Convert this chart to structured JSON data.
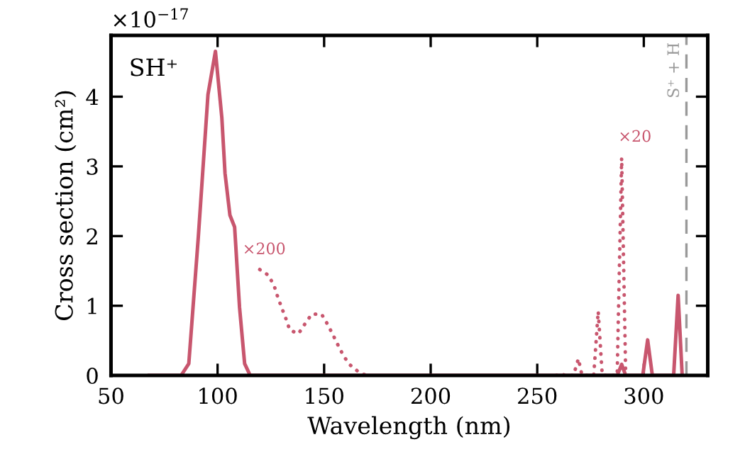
{
  "chart_data": {
    "type": "line",
    "xlabel": "Wavelength (nm)",
    "ylabel": "Cross section (cm²)",
    "xlim": [
      50,
      330
    ],
    "xticks": [
      50,
      100,
      150,
      200,
      250,
      300
    ],
    "ylim": [
      0,
      4.88
    ],
    "yticks": [
      0,
      1,
      2,
      3,
      4
    ],
    "grid": false,
    "legend": false,
    "marker": "none",
    "series": [
      {
        "color": "#c8566e",
        "line_style": "solid",
        "x": [
          68,
          82.9,
          86.5,
          91,
          95.5,
          99,
          102,
          103.5,
          105.8,
          108,
          110.3,
          112.7,
          115.3,
          287.5,
          289.6,
          291.5,
          299.5,
          301.8,
          304,
          314,
          316.1,
          318
        ],
        "values": [
          0,
          0,
          0.17,
          2.0,
          4.03,
          4.65,
          3.7,
          2.9,
          2.3,
          2.13,
          0.98,
          0.17,
          0,
          0,
          0.16,
          0,
          0,
          0.51,
          0,
          0,
          1.15,
          0
        ]
      },
      {
        "color": "#c8566e",
        "line_style": "dotted",
        "x": [
          119.8,
          123.8,
          126.5,
          128.2,
          130.1,
          131.9,
          133.9,
          138,
          141,
          144.2,
          148.8,
          151.5,
          154.2,
          156.6,
          159.3,
          162.2,
          166.6,
          170
        ],
        "values": [
          1.52,
          1.44,
          1.29,
          1.13,
          0.97,
          0.83,
          0.65,
          0.6,
          0.74,
          0.88,
          0.88,
          0.74,
          0.58,
          0.43,
          0.27,
          0.15,
          0.04,
          0
        ]
      },
      {
        "color": "#c8566e",
        "line_style": "dotted",
        "x": [
          259,
          261,
          263,
          267,
          269.3,
          271,
          276.5,
          278.6,
          280.5,
          287.5,
          289.6,
          291.5
        ],
        "values": [
          0,
          0.03,
          0,
          0,
          0.24,
          0,
          0,
          0.92,
          0,
          0,
          3.12,
          0
        ]
      }
    ],
    "ref_lines": [
      {
        "axis": "x",
        "value": 320,
        "label": "S⁺ + H",
        "color": "#999999",
        "line_style": "dashed"
      }
    ],
    "annotations": [
      "×10$^{−17}$",
      "SH⁺",
      {
        "text": "×200",
        "x": 120,
        "y": 1.52
      },
      "×20"
    ]
  }
}
